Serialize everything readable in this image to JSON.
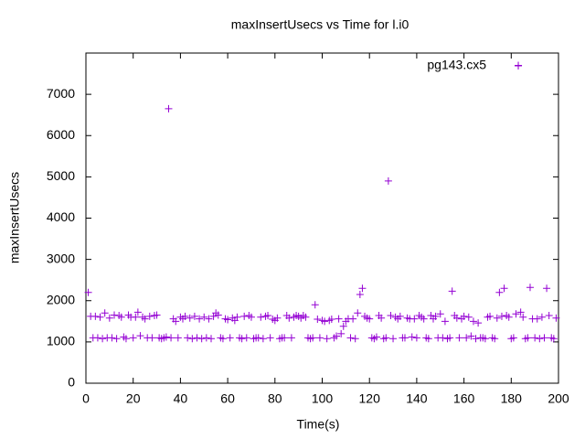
{
  "chart_data": {
    "type": "scatter",
    "title": "maxInsertUsecs vs Time for l.i0",
    "x_label": "Time(s)",
    "y_label": "maxInsertUsecs",
    "xlim": [
      0,
      200
    ],
    "ylim": [
      0,
      8000
    ],
    "xticks": [
      0,
      20,
      40,
      60,
      80,
      100,
      120,
      140,
      160,
      180,
      200
    ],
    "yticks": [
      0,
      1000,
      2000,
      3000,
      4000,
      5000,
      6000,
      7000
    ],
    "grid": false,
    "legend": "top right",
    "series": [
      {
        "name": "pg143.cx5",
        "color": "#9400d3",
        "marker": "plus",
        "x": [
          1,
          2,
          3,
          4,
          5,
          6,
          7,
          8,
          9,
          10,
          11,
          12,
          13,
          14,
          15,
          16,
          17,
          18,
          19,
          20,
          21,
          22,
          23,
          24,
          25,
          26,
          27,
          28,
          29,
          30,
          31,
          32,
          33,
          34,
          35,
          36,
          37,
          38,
          39,
          40,
          41,
          42,
          43,
          44,
          45,
          46,
          47,
          48,
          49,
          50,
          51,
          52,
          53,
          54,
          55,
          56,
          57,
          58,
          59,
          60,
          61,
          62,
          63,
          64,
          65,
          66,
          67,
          68,
          69,
          70,
          71,
          72,
          73,
          74,
          75,
          76,
          77,
          78,
          79,
          80,
          81,
          82,
          83,
          84,
          85,
          86,
          87,
          88,
          89,
          90,
          91,
          92,
          93,
          94,
          95,
          96,
          97,
          98,
          99,
          100,
          101,
          102,
          103,
          104,
          105,
          106,
          107,
          108,
          109,
          110,
          111,
          112,
          113,
          114,
          115,
          116,
          117,
          118,
          119,
          120,
          121,
          122,
          123,
          124,
          125,
          126,
          127,
          128,
          129,
          130,
          131,
          132,
          133,
          134,
          135,
          136,
          137,
          138,
          139,
          140,
          141,
          142,
          143,
          144,
          145,
          146,
          147,
          148,
          149,
          150,
          151,
          152,
          153,
          154,
          155,
          156,
          157,
          158,
          159,
          160,
          161,
          162,
          163,
          164,
          165,
          166,
          167,
          168,
          169,
          170,
          171,
          172,
          173,
          174,
          175,
          176,
          177,
          178,
          179,
          180,
          181,
          182,
          183,
          184,
          185,
          186,
          187,
          188,
          189,
          190,
          191,
          192,
          193,
          194,
          195,
          196,
          197,
          198,
          199
        ],
        "values": [
          2200,
          1620,
          1100,
          1620,
          1100,
          1600,
          1080,
          1700,
          1100,
          1580,
          1100,
          1650,
          1080,
          1640,
          1600,
          1120,
          1080,
          1650,
          1600,
          1100,
          1600,
          1720,
          1150,
          1600,
          1560,
          1100,
          1620,
          1100,
          1640,
          1650,
          1100,
          1080,
          1100,
          1120,
          6650,
          1100,
          1560,
          1500,
          1100,
          1600,
          1560,
          1620,
          1100,
          1580,
          1080,
          1620,
          1100,
          1560,
          1080,
          1600,
          1100,
          1560,
          1080,
          1620,
          1700,
          1650,
          1100,
          1080,
          1560,
          1540,
          1100,
          1580,
          1520,
          1600,
          1100,
          1080,
          1620,
          1100,
          1640,
          1600,
          1080,
          1100,
          1100,
          1600,
          1080,
          1620,
          1640,
          1100,
          1550,
          1520,
          1580,
          1080,
          1100,
          1100,
          1640,
          1580,
          1100,
          1600,
          1640,
          1620,
          1580,
          1640,
          1600,
          1100,
          1080,
          1100,
          1900,
          1550,
          1100,
          1520,
          1500,
          1080,
          1520,
          1550,
          1100,
          1140,
          1560,
          1200,
          1380,
          1500,
          1560,
          1100,
          1560,
          1080,
          1700,
          2150,
          2300,
          1620,
          1580,
          1560,
          1100,
          1080,
          1120,
          1640,
          1580,
          1080,
          1100,
          4900,
          1640,
          1080,
          1600,
          1560,
          1620,
          1100,
          1100,
          1580,
          1560,
          1120,
          1560,
          1100,
          1640,
          1600,
          1560,
          1100,
          1080,
          1640,
          1560,
          1620,
          1100,
          1680,
          1100,
          1500,
          1080,
          1100,
          2230,
          1640,
          1580,
          1100,
          1560,
          1620,
          1100,
          1600,
          1140,
          1500,
          1080,
          1460,
          1100,
          1100,
          1080,
          1600,
          1620,
          1100,
          1080,
          1580,
          2200,
          1620,
          2300,
          1640,
          1600,
          1080,
          1100,
          1680,
          7700,
          1720,
          1600,
          1080,
          1100,
          2320,
          1560,
          1100,
          1560,
          1080,
          1600,
          1100,
          2300,
          1640,
          1100,
          1080,
          1580
        ]
      }
    ]
  }
}
